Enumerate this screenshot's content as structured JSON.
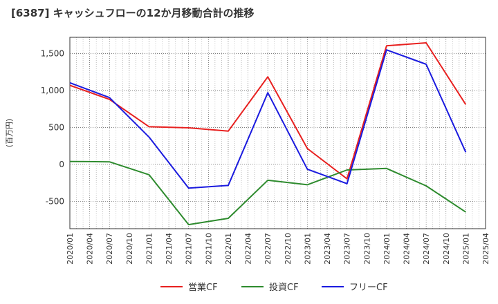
{
  "title": "[6387]  キャッシュフローの12か月移動合計の推移",
  "chart_data": {
    "type": "line",
    "title": "[6387]  キャッシュフローの12か月移動合計の推移",
    "ylabel": "(百万円)",
    "xlabel": "",
    "ylim": [
      -870,
      1720
    ],
    "yticks": [
      -500,
      0,
      500,
      1000,
      1500
    ],
    "ytick_labels": [
      "-500",
      "0",
      "500",
      "1,000",
      "1,500"
    ],
    "x": [
      "2020/01",
      "2020/04",
      "2020/07",
      "2020/10",
      "2021/01",
      "2021/04",
      "2021/07",
      "2021/10",
      "2022/01",
      "2022/04",
      "2022/07",
      "2022/10",
      "2023/01",
      "2023/04",
      "2023/07",
      "2023/10",
      "2024/01",
      "2024/04",
      "2024/07",
      "2024/10",
      "2025/01",
      "2025/04"
    ],
    "grid": true,
    "legend_position": "bottom",
    "series": [
      {
        "name": "営業CF",
        "color": "#e8201f",
        "points": [
          [
            "2020/01",
            1070
          ],
          [
            "2020/07",
            880
          ],
          [
            "2021/01",
            510
          ],
          [
            "2021/07",
            495
          ],
          [
            "2022/01",
            450
          ],
          [
            "2022/07",
            1185
          ],
          [
            "2023/01",
            215
          ],
          [
            "2023/07",
            -195
          ],
          [
            "2024/01",
            1605
          ],
          [
            "2024/07",
            1645
          ],
          [
            "2025/01",
            810
          ]
        ]
      },
      {
        "name": "投資CF",
        "color": "#2e8b2e",
        "points": [
          [
            "2020/01",
            40
          ],
          [
            "2020/07",
            35
          ],
          [
            "2021/01",
            -140
          ],
          [
            "2021/07",
            -815
          ],
          [
            "2022/01",
            -730
          ],
          [
            "2022/07",
            -215
          ],
          [
            "2023/01",
            -275
          ],
          [
            "2023/07",
            -75
          ],
          [
            "2024/01",
            -55
          ],
          [
            "2024/07",
            -290
          ],
          [
            "2025/01",
            -645
          ]
        ]
      },
      {
        "name": "フリーCF",
        "color": "#1a1adf",
        "points": [
          [
            "2020/01",
            1105
          ],
          [
            "2020/07",
            905
          ],
          [
            "2021/01",
            370
          ],
          [
            "2021/07",
            -320
          ],
          [
            "2022/01",
            -285
          ],
          [
            "2022/07",
            970
          ],
          [
            "2023/01",
            -65
          ],
          [
            "2023/07",
            -260
          ],
          [
            "2024/01",
            1550
          ],
          [
            "2024/07",
            1355
          ],
          [
            "2025/01",
            165
          ]
        ]
      }
    ]
  }
}
